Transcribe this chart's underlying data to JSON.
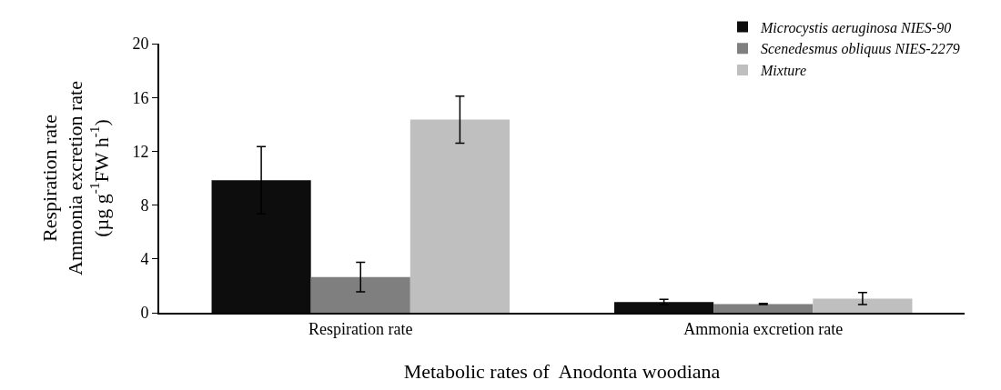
{
  "chart_data": {
    "type": "bar",
    "xlabel": "Metabolic rates of  Anodonta woodiana",
    "ylabel": "Respiration rate\nAmmonia excretion rate\n(µg g$^{-1}$FW h$^{-1}$)",
    "categories": [
      "Respiration rate",
      "Ammonia excretion rate"
    ],
    "series": [
      {
        "name": "Microcystis aeruginosa NIES-90",
        "color": "#0d0d0d",
        "values": [
          9.85,
          0.8
        ],
        "errors": [
          2.5,
          0.2
        ]
      },
      {
        "name": "Scenedesmus obliquus NIES-2279",
        "color": "#7f7f7f",
        "values": [
          2.65,
          0.65
        ],
        "errors": [
          1.1,
          0.05
        ]
      },
      {
        "name": "Mixture",
        "color": "#bfbfbf",
        "values": [
          14.35,
          1.05
        ],
        "errors": [
          1.75,
          0.45
        ]
      }
    ],
    "ylim": [
      0,
      20
    ],
    "yticks": [
      0,
      4,
      8,
      12,
      16,
      20
    ],
    "legend": "top right"
  }
}
